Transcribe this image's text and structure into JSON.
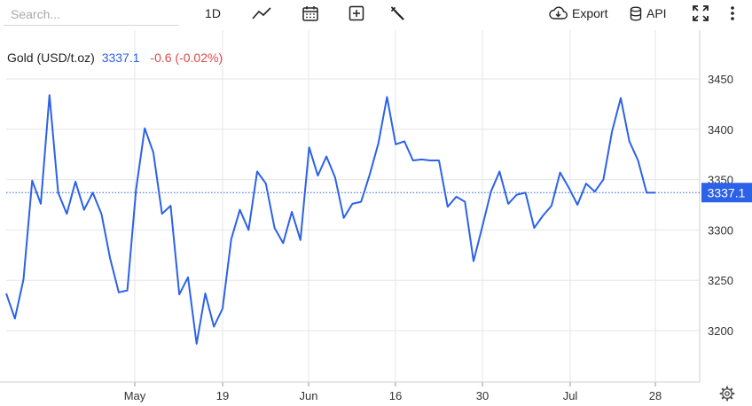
{
  "toolbar": {
    "search_placeholder": "Search...",
    "interval": "1D",
    "export_label": "Export",
    "api_label": "API",
    "icons": [
      "chart-type-icon",
      "calendar-icon",
      "add-indicator-icon",
      "wrench-icon",
      "cloud-download-icon",
      "database-icon",
      "fullscreen-icon",
      "more-vertical-icon",
      "settings-gear-icon"
    ]
  },
  "quote": {
    "name": "Gold (USD/t.oz)",
    "last": "3337.1",
    "change": "-0.6 (-0.02%)"
  },
  "colors": {
    "line": "#2c62e8",
    "change_negative": "#e04848",
    "last_price_label_bg": "#2c62e8",
    "grid": "#e6e6e6"
  },
  "chart_data": {
    "type": "line",
    "title": "Gold (USD/t.oz)",
    "xlabel": "",
    "ylabel": "",
    "ylim": [
      3150,
      3485
    ],
    "y_ticks": [
      "3450",
      "3400",
      "3350",
      "3300",
      "3250",
      "3200"
    ],
    "x_tick_labels": [
      "May",
      "19",
      "Jun",
      "16",
      "30",
      "Jul",
      "28"
    ],
    "last_price_label": "3337.1",
    "grid": true,
    "series": [
      {
        "values": [
          3237,
          3212,
          3251,
          3349,
          3326,
          3434,
          3337,
          3316,
          3348,
          3320,
          3337,
          3316,
          3272,
          3238,
          3240,
          3340,
          3401,
          3377,
          3316,
          3324,
          3236,
          3253,
          3187,
          3237,
          3204,
          3222,
          3291,
          3320,
          3300,
          3358,
          3346,
          3302,
          3287,
          3318,
          3290,
          3382,
          3354,
          3373,
          3352,
          3312,
          3326,
          3328,
          3355,
          3386,
          3432,
          3385,
          3388,
          3369,
          3370,
          3369,
          3369,
          3323,
          3333,
          3328,
          3269,
          3303,
          3338,
          3358,
          3326,
          3335,
          3337,
          3302,
          3314,
          3324,
          3357,
          3342,
          3325,
          3346,
          3338,
          3350,
          3398,
          3431,
          3388,
          3369,
          3337,
          3337
        ]
      }
    ]
  }
}
